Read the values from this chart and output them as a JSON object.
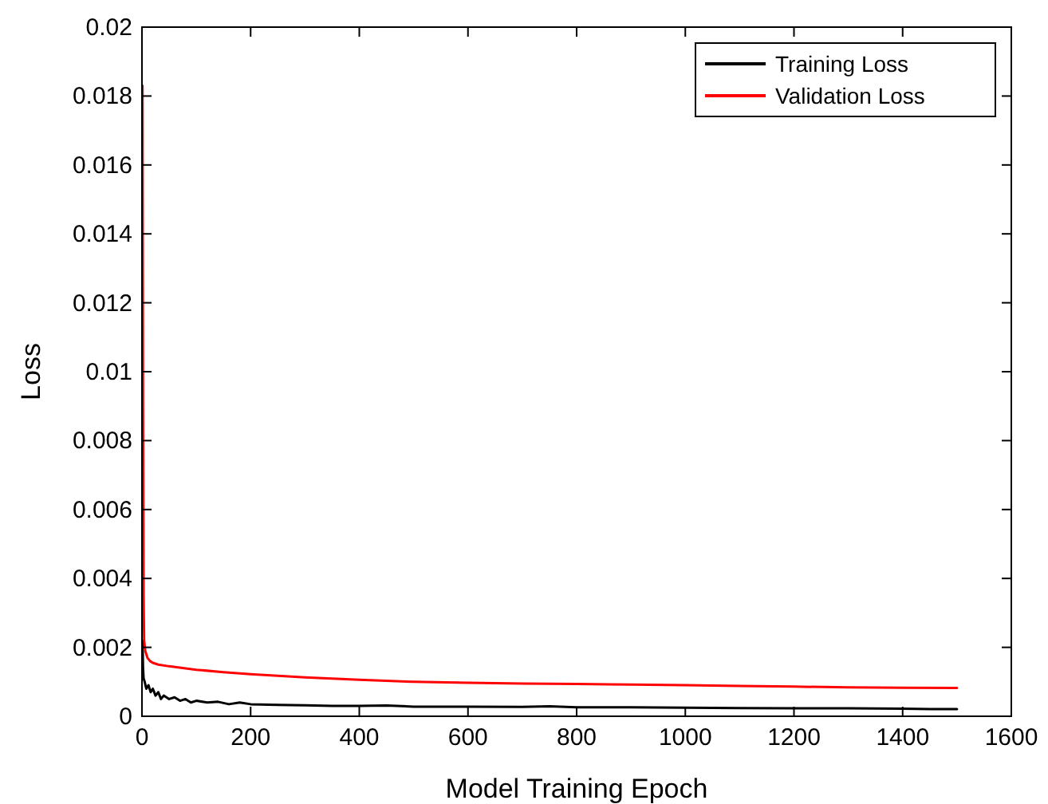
{
  "chart_data": {
    "type": "line",
    "xlabel": "Model Training Epoch",
    "ylabel": "Loss",
    "xlim": [
      0,
      1600
    ],
    "xticks": [
      0,
      200,
      400,
      600,
      800,
      1000,
      1200,
      1400,
      1600
    ],
    "ylim": [
      0,
      0.02
    ],
    "yticks": [
      0,
      0.002,
      0.004,
      0.006,
      0.008,
      0.01,
      0.012,
      0.014,
      0.016,
      0.018,
      0.02
    ],
    "legend": "top right",
    "grid": false,
    "series": [
      {
        "name": "Training Loss",
        "color": "#000000",
        "x": [
          1,
          2,
          3,
          5,
          8,
          12,
          16,
          20,
          25,
          30,
          35,
          40,
          50,
          60,
          70,
          80,
          90,
          100,
          120,
          140,
          160,
          180,
          200,
          250,
          300,
          350,
          400,
          450,
          500,
          600,
          700,
          750,
          800,
          900,
          1000,
          1100,
          1200,
          1300,
          1400,
          1450,
          1500
        ],
        "values": [
          0.0022,
          0.0014,
          0.0011,
          0.001,
          0.0008,
          0.0009,
          0.0007,
          0.0008,
          0.0006,
          0.0007,
          0.0005,
          0.0006,
          0.0005,
          0.00055,
          0.00045,
          0.0005,
          0.0004,
          0.00045,
          0.0004,
          0.00042,
          0.00035,
          0.0004,
          0.00035,
          0.00033,
          0.00032,
          0.0003,
          0.0003,
          0.00031,
          0.00028,
          0.00028,
          0.00027,
          0.00029,
          0.00026,
          0.00026,
          0.00025,
          0.00024,
          0.00023,
          0.00023,
          0.00022,
          0.00021,
          0.00021
        ]
      },
      {
        "name": "Validation Loss",
        "color": "#ff0000",
        "x": [
          1,
          2,
          3,
          4,
          6,
          10,
          15,
          20,
          30,
          50,
          75,
          100,
          150,
          200,
          300,
          400,
          500,
          600,
          700,
          800,
          900,
          1000,
          1100,
          1200,
          1300,
          1400,
          1500
        ],
        "values": [
          0.0183,
          0.009,
          0.0035,
          0.0022,
          0.0019,
          0.0017,
          0.0016,
          0.00155,
          0.0015,
          0.00145,
          0.0014,
          0.00135,
          0.00128,
          0.00122,
          0.00113,
          0.00106,
          0.001,
          0.00097,
          0.00095,
          0.00094,
          0.00092,
          0.0009,
          0.00088,
          0.00086,
          0.00084,
          0.00083,
          0.00082
        ]
      }
    ]
  }
}
